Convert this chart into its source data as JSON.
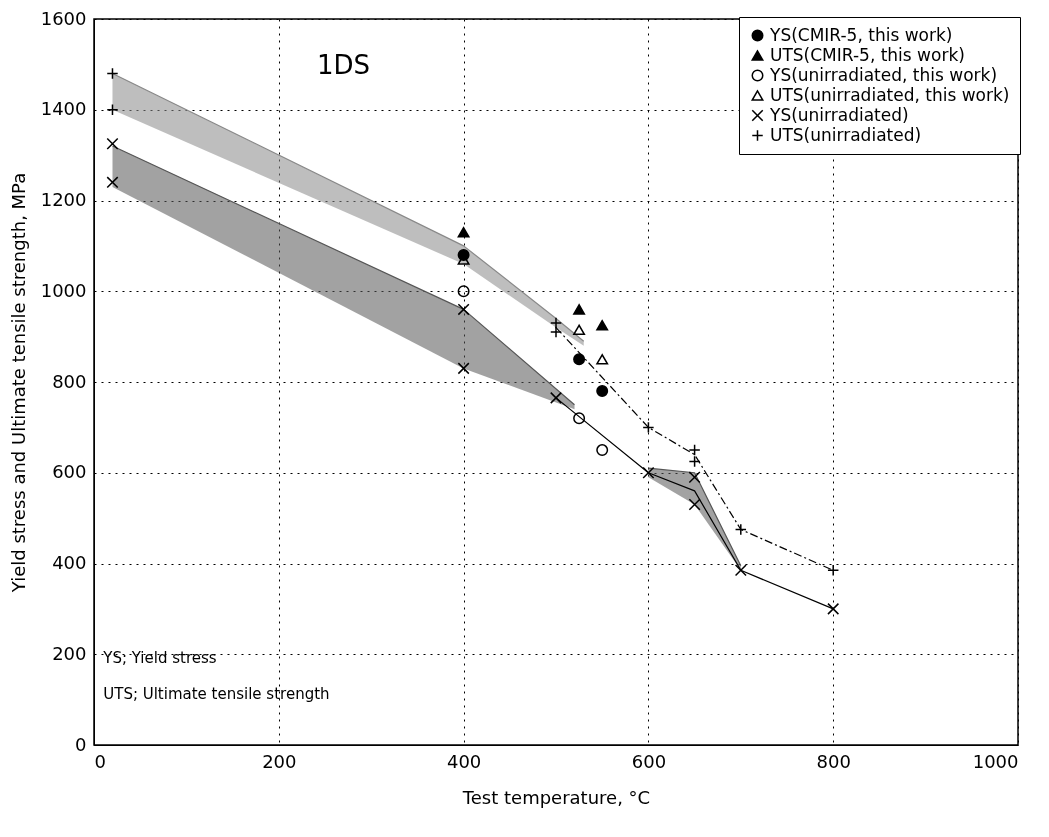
{
  "chart_data": {
    "type": "scatter",
    "xlabel": "Test temperature, °C",
    "ylabel": "Yield stress and Ultimate tensile strength, MPa",
    "xlim": [
      0,
      1000
    ],
    "xticks": [
      0,
      200,
      400,
      600,
      800,
      1000
    ],
    "ylim": [
      0,
      1600
    ],
    "yticks": [
      0,
      200,
      400,
      600,
      800,
      1000,
      1200,
      1400,
      1600
    ],
    "grid": true,
    "legend": "top right",
    "annotations": [
      "1DS",
      "YS; Yield stress",
      "UTS; Ultimate tensile strength"
    ],
    "series": [
      {
        "type": "line",
        "color": "#888888",
        "line_style": "solid",
        "x": [
          20,
          400,
          500,
          530
        ],
        "lower": [
          1400,
          1060,
          920,
          880
        ],
        "values": [
          1480,
          1100,
          940,
          890
        ],
        "upper": [
          1480,
          1100,
          940,
          890
        ]
      },
      {
        "type": "line",
        "color": "#555555",
        "line_style": "solid",
        "x": [
          20,
          400,
          520
        ],
        "lower": [
          1230,
          830,
          740
        ],
        "values": [
          1320,
          960,
          750
        ],
        "upper": [
          1320,
          960,
          750
        ]
      },
      {
        "type": "line",
        "color": "#555555",
        "line_style": "solid",
        "x": [
          600,
          650,
          700
        ],
        "lower": [
          590,
          530,
          385
        ],
        "values": [
          610,
          600,
          395
        ],
        "upper": [
          610,
          600,
          395
        ]
      },
      {
        "type": "line",
        "color": "#000000",
        "line_style": "solid",
        "x": [
          500,
          600,
          650,
          700,
          800
        ],
        "values": [
          765,
          600,
          560,
          385,
          300
        ]
      },
      {
        "type": "line",
        "color": "#000000",
        "line_style": "dashed",
        "x": [
          500,
          600,
          650,
          700,
          800
        ],
        "values": [
          920,
          700,
          640,
          475,
          385
        ]
      },
      {
        "name": "YS(CMIR-5, this work)",
        "color": "#000000",
        "marker": "circle",
        "x": [
          400,
          525,
          550
        ],
        "values": [
          1080,
          850,
          780
        ]
      },
      {
        "name": "UTS(CMIR-5, this work)",
        "color": "#000000",
        "marker": "triangle",
        "x": [
          400,
          525,
          550
        ],
        "values": [
          1130,
          960,
          925
        ]
      },
      {
        "name": "YS(unirradiated, this work)",
        "color": "#000000",
        "marker": "circle-open",
        "x": [
          400,
          525,
          550
        ],
        "values": [
          1000,
          720,
          650
        ]
      },
      {
        "name": "UTS(unirradiated, this work)",
        "color": "#000000",
        "marker": "triangle-open",
        "x": [
          400,
          525,
          550
        ],
        "values": [
          1070,
          915,
          850
        ]
      },
      {
        "name": "YS(unirradiated)",
        "color": "#000000",
        "marker": "cross",
        "x": [
          20,
          20,
          400,
          400,
          500,
          600,
          650,
          650,
          700,
          800
        ],
        "values": [
          1325,
          1240,
          960,
          830,
          765,
          600,
          590,
          530,
          385,
          300
        ]
      },
      {
        "name": "UTS(unirradiated)",
        "color": "#000000",
        "marker": "plus",
        "x": [
          20,
          20,
          500,
          500,
          600,
          650,
          650,
          700,
          800
        ],
        "values": [
          1480,
          1400,
          930,
          910,
          700,
          650,
          625,
          475,
          385
        ]
      }
    ]
  }
}
